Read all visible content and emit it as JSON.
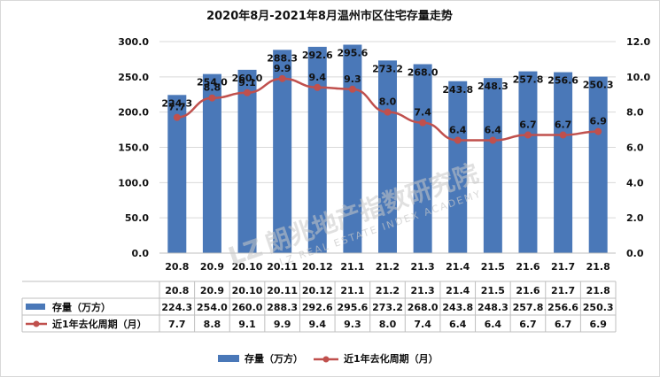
{
  "chart_data": {
    "type": "bar",
    "title": "2020年8月-2021年8月温州市区住宅存量走势",
    "categories": [
      "20.8",
      "20.9",
      "20.10",
      "20.11",
      "20.12",
      "21.1",
      "21.2",
      "21.3",
      "21.4",
      "21.5",
      "21.6",
      "21.7",
      "21.8"
    ],
    "series": [
      {
        "name": "存量（万方）",
        "type": "bar",
        "axis": "left",
        "color": "#4a78b8",
        "values": [
          224.3,
          254.0,
          260.0,
          288.3,
          292.6,
          295.6,
          273.2,
          268.0,
          243.8,
          248.3,
          257.8,
          256.6,
          250.3
        ]
      },
      {
        "name": "近1年去化周期（月）",
        "type": "line",
        "axis": "right",
        "color": "#c0504d",
        "values": [
          7.7,
          8.8,
          9.1,
          9.9,
          9.4,
          9.3,
          8.0,
          7.4,
          6.4,
          6.4,
          6.7,
          6.7,
          6.9
        ]
      }
    ],
    "y_left": {
      "ylim": [
        0,
        300
      ],
      "ticks": [
        "0.0",
        "50.0",
        "100.0",
        "150.0",
        "200.0",
        "250.0",
        "300.0"
      ]
    },
    "y_right": {
      "ylim": [
        0,
        12
      ],
      "ticks": [
        "0.0",
        "2.0",
        "4.0",
        "6.0",
        "8.0",
        "10.0",
        "12.0"
      ]
    },
    "grid": true,
    "legend": "bottom",
    "data_table": true
  },
  "watermark": {
    "text": "朗兆地产指数研究院",
    "subtext": "LZ REAL ESTATE INDEX ACADEMY",
    "logo_letters": "LZ"
  }
}
